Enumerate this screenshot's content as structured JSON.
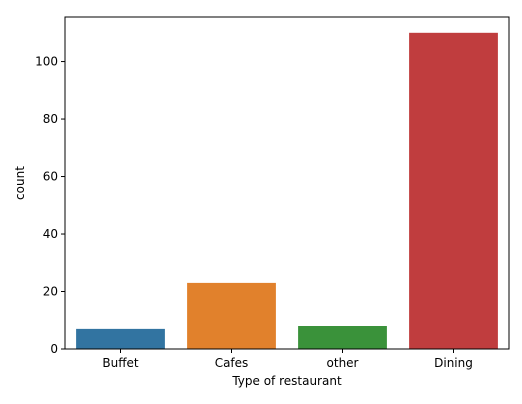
{
  "chart_data": {
    "type": "bar",
    "title": "",
    "xlabel": "Type of restaurant",
    "ylabel": "count",
    "categories": [
      "Buffet",
      "Cafes",
      "other",
      "Dining"
    ],
    "values": [
      7,
      23,
      8,
      110
    ],
    "colors": [
      "#3274a1",
      "#e1812c",
      "#3a923a",
      "#c03d3e"
    ],
    "ylim": [
      0,
      115.5
    ],
    "yticks": [
      0,
      20,
      40,
      60,
      80,
      100
    ],
    "grid": false,
    "legend": "none"
  }
}
